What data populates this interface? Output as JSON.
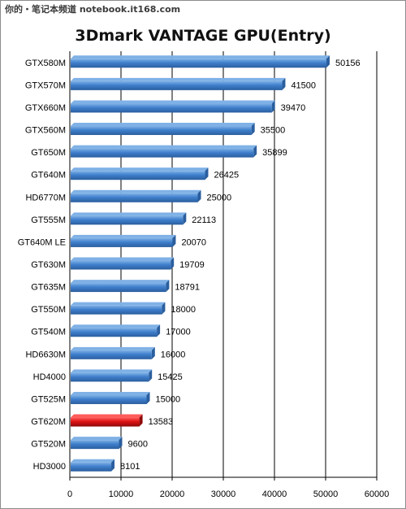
{
  "watermark": "你的・笔记本频道 notebook.it168.com",
  "colors": {
    "bar_top": "#7fb1e6",
    "bar_main": "#3f7fcc",
    "bar_bottom": "#2a5e9e",
    "highlight_top": "#ff5a5a",
    "highlight_main": "#dc1111",
    "highlight_bottom": "#8f0a0a",
    "grid": "#000000"
  },
  "chart_data": {
    "type": "bar",
    "orientation": "horizontal",
    "title": "3Dmark VANTAGE GPU(Entry)",
    "xlabel": "",
    "ylabel": "",
    "xlim": [
      0,
      60000
    ],
    "xticks": [
      0,
      10000,
      20000,
      30000,
      40000,
      50000,
      60000
    ],
    "grid": "vertical",
    "legend": "none",
    "categories": [
      "GTX580M",
      "GTX570M",
      "GTX660M",
      "GTX560M",
      "GT650M",
      "GT640M",
      "HD6770M",
      "GT555M",
      "GT640M LE",
      "GT630M",
      "GT635M",
      "GT550M",
      "GT540M",
      "HD6630M",
      "HD4000",
      "GT525M",
      "GT620M",
      "GT520M",
      "HD3000"
    ],
    "values": [
      50156,
      41500,
      39470,
      35500,
      35899,
      26425,
      25000,
      22113,
      20070,
      19709,
      18791,
      18000,
      17000,
      16000,
      15425,
      15000,
      13583,
      9600,
      8101
    ],
    "highlight": "GT620M"
  }
}
